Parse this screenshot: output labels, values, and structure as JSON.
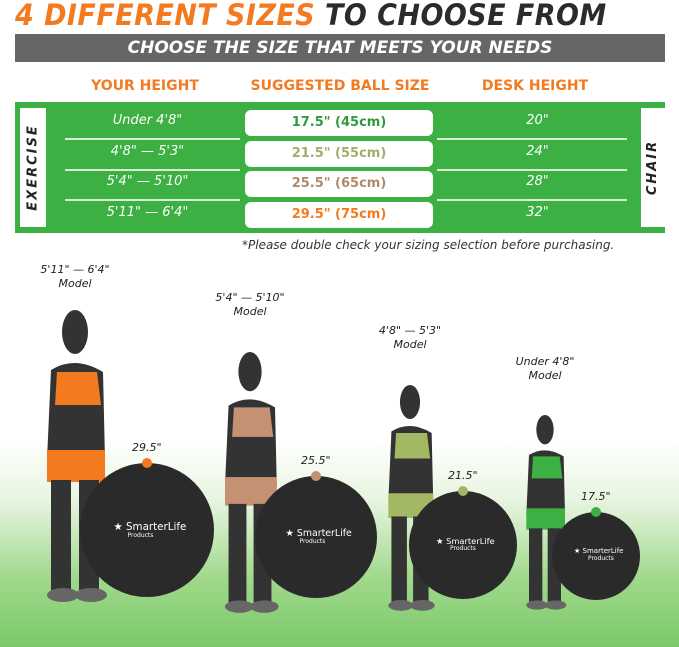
{
  "title": {
    "highlight": "4 DIFFERENT SIZES",
    "rest": "TO CHOOSE FROM"
  },
  "subtitle": "CHOOSE THE SIZE THAT MEETS YOUR NEEDS",
  "headers": {
    "height": "YOUR HEIGHT",
    "ball": "SUGGESTED BALL SIZE",
    "desk": "DESK HEIGHT"
  },
  "side_labels": {
    "left": "EXERCISE",
    "right": "CHAIR"
  },
  "rows": [
    {
      "height": "Under 4'8\"",
      "ball": "17.5\" (45cm)",
      "desk": "20\"",
      "color": "#2e9a3c"
    },
    {
      "height": "4'8\" — 5'3\"",
      "ball": "21.5\" (55cm)",
      "desk": "24\"",
      "color": "#a3ac6a"
    },
    {
      "height": "5'4\" — 5'10\"",
      "ball": "25.5\" (65cm)",
      "desk": "28\"",
      "color": "#b08a6c"
    },
    {
      "height": "5'11\" — 6'4\"",
      "ball": "29.5\" (75cm)",
      "desk": "32\"",
      "color": "#f47a20"
    }
  ],
  "note": "*Please double check your sizing selection before purchasing.",
  "models": [
    {
      "range": "5'11\" — 6'4\"",
      "label": "Model",
      "ball": "29.5\"",
      "color": "#f47a20"
    },
    {
      "range": "5'4\" — 5'10\"",
      "label": "Model",
      "ball": "25.5\"",
      "color": "#c49272"
    },
    {
      "range": "4'8\" — 5'3\"",
      "label": "Model",
      "ball": "21.5\"",
      "color": "#a3b862"
    },
    {
      "range": "Under 4'8\"",
      "label": "Model",
      "ball": "17.5\"",
      "color": "#3cb043"
    }
  ],
  "brand": {
    "name": "SmarterLife",
    "sub": "Products"
  }
}
